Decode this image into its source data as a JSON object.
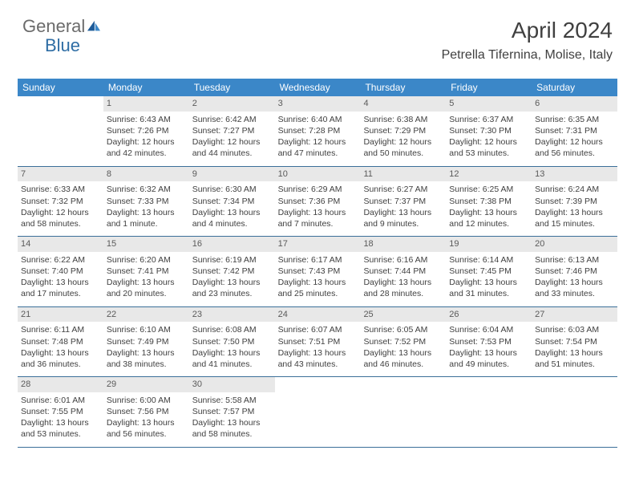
{
  "logo": {
    "text1": "General",
    "text2": "Blue"
  },
  "title": "April 2024",
  "location": "Petrella Tifernina, Molise, Italy",
  "colors": {
    "header_bg": "#3b87c8",
    "header_text": "#ffffff",
    "daynum_bg": "#e8e8e8",
    "daynum_text": "#5a5a5a",
    "body_text": "#404040",
    "week_border": "#3b6f99",
    "logo_gray": "#6b6b6b",
    "logo_blue": "#2e6da4",
    "page_bg": "#ffffff"
  },
  "day_headers": [
    "Sunday",
    "Monday",
    "Tuesday",
    "Wednesday",
    "Thursday",
    "Friday",
    "Saturday"
  ],
  "weeks": [
    [
      {
        "num": "",
        "sunrise": "",
        "sunset": "",
        "daylight": ""
      },
      {
        "num": "1",
        "sunrise": "Sunrise: 6:43 AM",
        "sunset": "Sunset: 7:26 PM",
        "daylight": "Daylight: 12 hours and 42 minutes."
      },
      {
        "num": "2",
        "sunrise": "Sunrise: 6:42 AM",
        "sunset": "Sunset: 7:27 PM",
        "daylight": "Daylight: 12 hours and 44 minutes."
      },
      {
        "num": "3",
        "sunrise": "Sunrise: 6:40 AM",
        "sunset": "Sunset: 7:28 PM",
        "daylight": "Daylight: 12 hours and 47 minutes."
      },
      {
        "num": "4",
        "sunrise": "Sunrise: 6:38 AM",
        "sunset": "Sunset: 7:29 PM",
        "daylight": "Daylight: 12 hours and 50 minutes."
      },
      {
        "num": "5",
        "sunrise": "Sunrise: 6:37 AM",
        "sunset": "Sunset: 7:30 PM",
        "daylight": "Daylight: 12 hours and 53 minutes."
      },
      {
        "num": "6",
        "sunrise": "Sunrise: 6:35 AM",
        "sunset": "Sunset: 7:31 PM",
        "daylight": "Daylight: 12 hours and 56 minutes."
      }
    ],
    [
      {
        "num": "7",
        "sunrise": "Sunrise: 6:33 AM",
        "sunset": "Sunset: 7:32 PM",
        "daylight": "Daylight: 12 hours and 58 minutes."
      },
      {
        "num": "8",
        "sunrise": "Sunrise: 6:32 AM",
        "sunset": "Sunset: 7:33 PM",
        "daylight": "Daylight: 13 hours and 1 minute."
      },
      {
        "num": "9",
        "sunrise": "Sunrise: 6:30 AM",
        "sunset": "Sunset: 7:34 PM",
        "daylight": "Daylight: 13 hours and 4 minutes."
      },
      {
        "num": "10",
        "sunrise": "Sunrise: 6:29 AM",
        "sunset": "Sunset: 7:36 PM",
        "daylight": "Daylight: 13 hours and 7 minutes."
      },
      {
        "num": "11",
        "sunrise": "Sunrise: 6:27 AM",
        "sunset": "Sunset: 7:37 PM",
        "daylight": "Daylight: 13 hours and 9 minutes."
      },
      {
        "num": "12",
        "sunrise": "Sunrise: 6:25 AM",
        "sunset": "Sunset: 7:38 PM",
        "daylight": "Daylight: 13 hours and 12 minutes."
      },
      {
        "num": "13",
        "sunrise": "Sunrise: 6:24 AM",
        "sunset": "Sunset: 7:39 PM",
        "daylight": "Daylight: 13 hours and 15 minutes."
      }
    ],
    [
      {
        "num": "14",
        "sunrise": "Sunrise: 6:22 AM",
        "sunset": "Sunset: 7:40 PM",
        "daylight": "Daylight: 13 hours and 17 minutes."
      },
      {
        "num": "15",
        "sunrise": "Sunrise: 6:20 AM",
        "sunset": "Sunset: 7:41 PM",
        "daylight": "Daylight: 13 hours and 20 minutes."
      },
      {
        "num": "16",
        "sunrise": "Sunrise: 6:19 AM",
        "sunset": "Sunset: 7:42 PM",
        "daylight": "Daylight: 13 hours and 23 minutes."
      },
      {
        "num": "17",
        "sunrise": "Sunrise: 6:17 AM",
        "sunset": "Sunset: 7:43 PM",
        "daylight": "Daylight: 13 hours and 25 minutes."
      },
      {
        "num": "18",
        "sunrise": "Sunrise: 6:16 AM",
        "sunset": "Sunset: 7:44 PM",
        "daylight": "Daylight: 13 hours and 28 minutes."
      },
      {
        "num": "19",
        "sunrise": "Sunrise: 6:14 AM",
        "sunset": "Sunset: 7:45 PM",
        "daylight": "Daylight: 13 hours and 31 minutes."
      },
      {
        "num": "20",
        "sunrise": "Sunrise: 6:13 AM",
        "sunset": "Sunset: 7:46 PM",
        "daylight": "Daylight: 13 hours and 33 minutes."
      }
    ],
    [
      {
        "num": "21",
        "sunrise": "Sunrise: 6:11 AM",
        "sunset": "Sunset: 7:48 PM",
        "daylight": "Daylight: 13 hours and 36 minutes."
      },
      {
        "num": "22",
        "sunrise": "Sunrise: 6:10 AM",
        "sunset": "Sunset: 7:49 PM",
        "daylight": "Daylight: 13 hours and 38 minutes."
      },
      {
        "num": "23",
        "sunrise": "Sunrise: 6:08 AM",
        "sunset": "Sunset: 7:50 PM",
        "daylight": "Daylight: 13 hours and 41 minutes."
      },
      {
        "num": "24",
        "sunrise": "Sunrise: 6:07 AM",
        "sunset": "Sunset: 7:51 PM",
        "daylight": "Daylight: 13 hours and 43 minutes."
      },
      {
        "num": "25",
        "sunrise": "Sunrise: 6:05 AM",
        "sunset": "Sunset: 7:52 PM",
        "daylight": "Daylight: 13 hours and 46 minutes."
      },
      {
        "num": "26",
        "sunrise": "Sunrise: 6:04 AM",
        "sunset": "Sunset: 7:53 PM",
        "daylight": "Daylight: 13 hours and 49 minutes."
      },
      {
        "num": "27",
        "sunrise": "Sunrise: 6:03 AM",
        "sunset": "Sunset: 7:54 PM",
        "daylight": "Daylight: 13 hours and 51 minutes."
      }
    ],
    [
      {
        "num": "28",
        "sunrise": "Sunrise: 6:01 AM",
        "sunset": "Sunset: 7:55 PM",
        "daylight": "Daylight: 13 hours and 53 minutes."
      },
      {
        "num": "29",
        "sunrise": "Sunrise: 6:00 AM",
        "sunset": "Sunset: 7:56 PM",
        "daylight": "Daylight: 13 hours and 56 minutes."
      },
      {
        "num": "30",
        "sunrise": "Sunrise: 5:58 AM",
        "sunset": "Sunset: 7:57 PM",
        "daylight": "Daylight: 13 hours and 58 minutes."
      },
      {
        "num": "",
        "sunrise": "",
        "sunset": "",
        "daylight": ""
      },
      {
        "num": "",
        "sunrise": "",
        "sunset": "",
        "daylight": ""
      },
      {
        "num": "",
        "sunrise": "",
        "sunset": "",
        "daylight": ""
      },
      {
        "num": "",
        "sunrise": "",
        "sunset": "",
        "daylight": ""
      }
    ]
  ]
}
